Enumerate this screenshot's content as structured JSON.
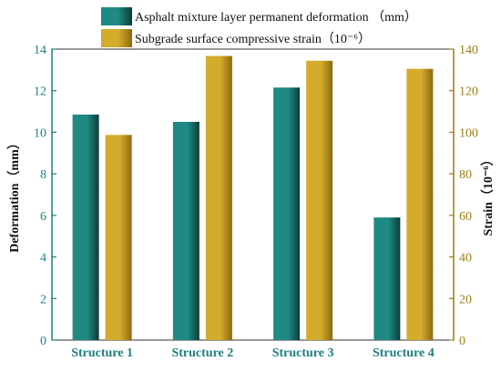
{
  "chart_data": {
    "type": "bar",
    "categories": [
      "Structure 1",
      "Structure 2",
      "Structure 3",
      "Structure 4"
    ],
    "series": [
      {
        "name": "Asphalt mixture layer permanent deformation （mm）",
        "axis": "left",
        "values": [
          10.85,
          10.5,
          12.15,
          5.9
        ]
      },
      {
        "name": "Subgrade surface compressive strain（10⁻⁶）",
        "axis": "right",
        "values": [
          98.7,
          136.7,
          134.4,
          130.5
        ]
      }
    ],
    "ylabel": "Deformation（mm）",
    "ylabel_right": "Strain（10⁻⁶）",
    "ylim": [
      0,
      14
    ],
    "ylim_right": [
      0,
      140
    ],
    "yticks": [
      0,
      2,
      4,
      6,
      8,
      10,
      12,
      14
    ],
    "yticks_right": [
      0,
      20,
      40,
      60,
      80,
      100,
      120,
      140
    ],
    "grid": false,
    "legend_position": "top-center",
    "colors": {
      "series_left": "#1f8a84",
      "series_left_dark": "#0b3c39",
      "series_right": "#d4ac2c",
      "series_right_dark": "#8d6a10",
      "axis_left": "#1f7f7f",
      "axis_right": "#9a7f14"
    }
  }
}
